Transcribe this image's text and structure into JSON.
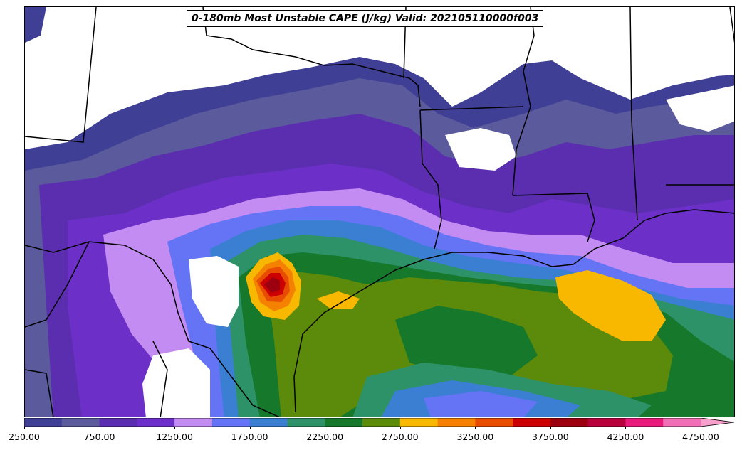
{
  "title": "0-180mb Most Unstable CAPE (J/kg) Valid: 202105110000f003",
  "colorbar": {
    "levels": [
      250,
      500,
      750,
      1000,
      1250,
      1500,
      1750,
      2000,
      2250,
      2500,
      2750,
      3000,
      3250,
      3500,
      3750,
      4000,
      4250,
      4500,
      4750
    ],
    "colors": [
      "#3f3f96",
      "#5a5a9c",
      "#5b2eb0",
      "#6c30c8",
      "#c38cf2",
      "#6474f5",
      "#3a7fd2",
      "#2e9268",
      "#15782a",
      "#5c8a0a",
      "#f8b800",
      "#f48200",
      "#e84c00",
      "#cc0000",
      "#9c0010",
      "#b8003c",
      "#ea1a7c",
      "#f070b8"
    ],
    "extend_color": "#f7a0cc",
    "tick_labels": [
      "250.00",
      "750.00",
      "1250.00",
      "1750.00",
      "2250.00",
      "2750.00",
      "3250.00",
      "3750.00",
      "4250.00",
      "4750.00"
    ]
  }
}
